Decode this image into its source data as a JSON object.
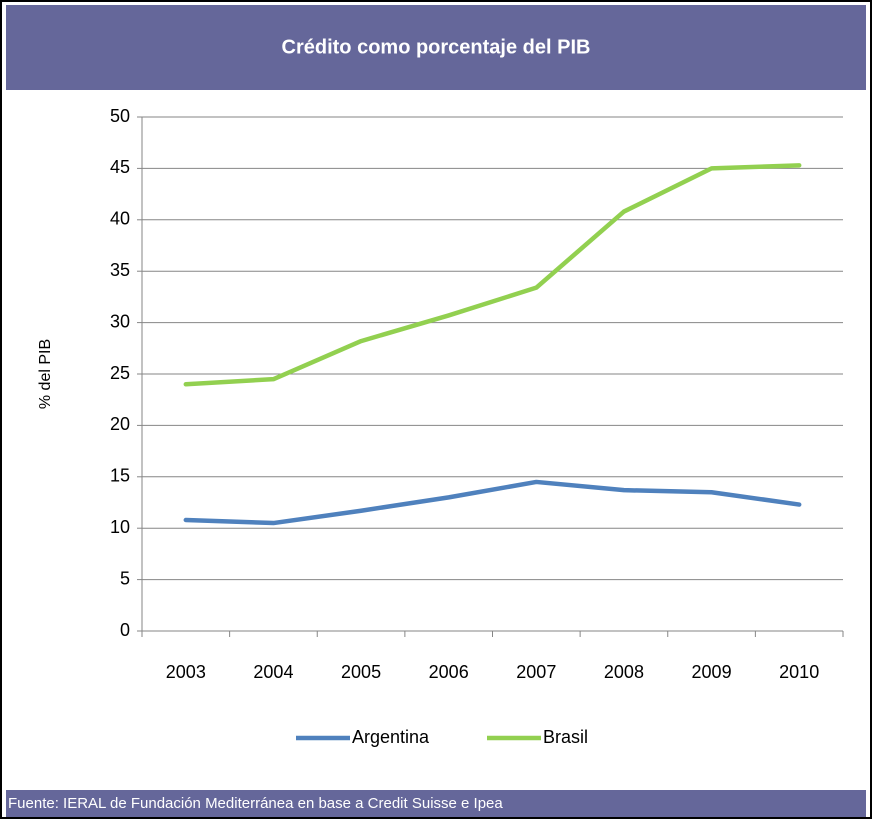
{
  "chart_data": {
    "type": "line",
    "title": "Crédito como porcentaje del PIB",
    "ylabel": "% del PIB",
    "source": "Fuente: IERAL de Fundación Mediterránea en base a  Credit Suisse e Ipea",
    "categories": [
      "2003",
      "2004",
      "2005",
      "2006",
      "2007",
      "2008",
      "2009",
      "2010"
    ],
    "series": [
      {
        "name": "Argentina",
        "color": "#4f81bd",
        "values": [
          10.8,
          10.5,
          11.7,
          13.0,
          14.5,
          13.7,
          13.5,
          12.3
        ]
      },
      {
        "name": "Brasil",
        "color": "#92d050",
        "values": [
          24.0,
          24.5,
          28.2,
          30.7,
          33.4,
          40.8,
          45.0,
          45.3
        ]
      }
    ],
    "ylim": [
      0,
      50
    ],
    "yticks": [
      0,
      5,
      10,
      15,
      20,
      25,
      30,
      35,
      40,
      45,
      50
    ],
    "grid": true,
    "legend": "bottom"
  }
}
